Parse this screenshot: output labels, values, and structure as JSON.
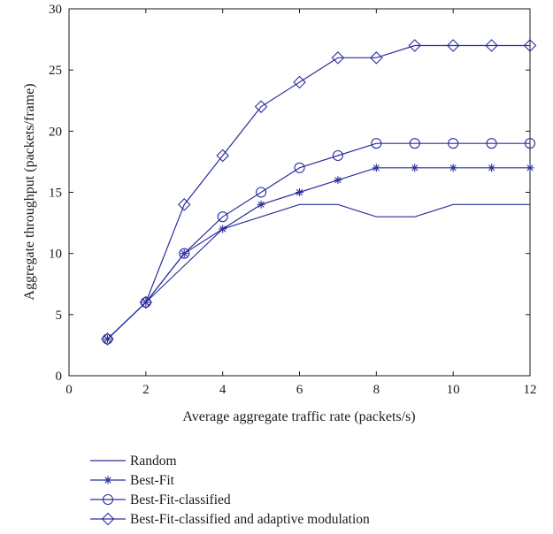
{
  "chart_data": {
    "type": "line",
    "title": "",
    "xlabel": "Average aggregate traffic rate (packets/s)",
    "ylabel": "Aggregate throughput (packets/frame)",
    "xlim": [
      0,
      12
    ],
    "ylim": [
      0,
      30
    ],
    "xticks": [
      "0",
      "2",
      "4",
      "6",
      "8",
      "10",
      "12"
    ],
    "yticks": [
      "0",
      "5",
      "10",
      "15",
      "20",
      "25",
      "30"
    ],
    "grid": false,
    "legend_position": "below-plot",
    "line_color": "#2b2f9e",
    "x": [
      1,
      2,
      3,
      4,
      5,
      6,
      7,
      8,
      9,
      10,
      11,
      12
    ],
    "series": [
      {
        "name": "Random",
        "marker": "none",
        "values": [
          3,
          6,
          9,
          12,
          13,
          14,
          14,
          13,
          13,
          14,
          14,
          14
        ]
      },
      {
        "name": "Best-Fit",
        "marker": "star",
        "values": [
          3,
          6,
          10,
          12,
          14,
          15,
          16,
          17,
          17,
          17,
          17,
          17
        ]
      },
      {
        "name": "Best-Fit-classified",
        "marker": "circle",
        "values": [
          3,
          6,
          10,
          13,
          15,
          17,
          18,
          19,
          19,
          19,
          19,
          19
        ]
      },
      {
        "name": "Best-Fit-classified and adaptive modulation",
        "marker": "diamond",
        "values": [
          3,
          6,
          14,
          18,
          22,
          24,
          26,
          26,
          27,
          27,
          27,
          27
        ]
      }
    ]
  }
}
